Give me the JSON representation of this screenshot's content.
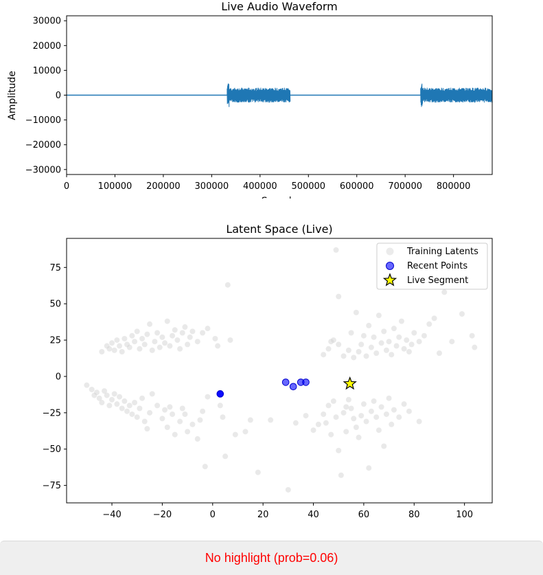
{
  "chart_data": [
    {
      "type": "line",
      "title": "Live Audio Waveform",
      "xlabel": "Sample",
      "ylabel": "Amplitude",
      "xlim": [
        0,
        880000
      ],
      "ylim": [
        -32000,
        32000
      ],
      "xticks": [
        0,
        100000,
        200000,
        300000,
        400000,
        500000,
        600000,
        700000,
        800000
      ],
      "xtick_labels": [
        "0",
        "100000",
        "200000",
        "300000",
        "400000",
        "500000",
        "600000",
        "700000",
        "800000"
      ],
      "yticks": [
        30000,
        20000,
        10000,
        0,
        -10000,
        -20000,
        -30000
      ],
      "ytick_labels": [
        "30000",
        "20000",
        "10000",
        "0",
        "−10000",
        "−20000",
        "−30000"
      ],
      "color": "#1f77b4",
      "segments": [
        {
          "start": 0,
          "end": 332000,
          "amplitude": 0
        },
        {
          "start": 332000,
          "end": 462000,
          "amplitude": 3000
        },
        {
          "start": 462000,
          "end": 732000,
          "amplitude": 0
        },
        {
          "start": 732000,
          "end": 880000,
          "amplitude": 3000
        }
      ]
    },
    {
      "type": "scatter",
      "title": "Latent Space (Live)",
      "xlim": [
        -58,
        111
      ],
      "ylim": [
        -87,
        95
      ],
      "xticks": [
        -40,
        -20,
        0,
        20,
        40,
        60,
        80,
        100
      ],
      "xtick_labels": [
        "−40",
        "−20",
        "0",
        "20",
        "40",
        "60",
        "80",
        "100"
      ],
      "yticks": [
        75,
        50,
        25,
        0,
        -25,
        -50,
        -75
      ],
      "ytick_labels": [
        "75",
        "50",
        "25",
        "0",
        "−25",
        "−50",
        "−75"
      ],
      "legend_position": "top-right",
      "series": [
        {
          "name": "Training Latents",
          "marker": "circle",
          "color": "#d3d3d3",
          "points": [
            [
              -50,
              -6
            ],
            [
              -48,
              -9
            ],
            [
              -47,
              -13
            ],
            [
              -46,
              -11
            ],
            [
              -45,
              -15
            ],
            [
              -44,
              -18
            ],
            [
              -43,
              -10
            ],
            [
              -42,
              -13
            ],
            [
              -41,
              -20
            ],
            [
              -40,
              -16
            ],
            [
              -39,
              -12
            ],
            [
              -38,
              -19
            ],
            [
              -37,
              -14
            ],
            [
              -36,
              -22
            ],
            [
              -35,
              -17
            ],
            [
              -34,
              -24
            ],
            [
              -33,
              -20
            ],
            [
              -32,
              -26
            ],
            [
              -31,
              -18
            ],
            [
              -30,
              -28
            ],
            [
              -29,
              -22
            ],
            [
              -28,
              -15
            ],
            [
              -27,
              -31
            ],
            [
              -26,
              -36
            ],
            [
              -25,
              -25
            ],
            [
              -24,
              -12
            ],
            [
              -22,
              -20
            ],
            [
              -20,
              -29
            ],
            [
              -19,
              -23
            ],
            [
              -18,
              -35
            ],
            [
              -17,
              -21
            ],
            [
              -16,
              -26
            ],
            [
              -15,
              -40
            ],
            [
              -13,
              -31
            ],
            [
              -12,
              -22
            ],
            [
              -11,
              -26
            ],
            [
              -10,
              -38
            ],
            [
              -8,
              -33
            ],
            [
              -6,
              -43
            ],
            [
              -5,
              -30
            ],
            [
              -4,
              -24
            ],
            [
              -3,
              -62
            ],
            [
              -2,
              -14
            ],
            [
              -44,
              17
            ],
            [
              -42,
              21
            ],
            [
              -41,
              19
            ],
            [
              -40,
              23
            ],
            [
              -39,
              18
            ],
            [
              -38,
              25
            ],
            [
              -37,
              21
            ],
            [
              -36,
              17
            ],
            [
              -35,
              26
            ],
            [
              -34,
              22
            ],
            [
              -33,
              20
            ],
            [
              -32,
              28
            ],
            [
              -31,
              24
            ],
            [
              -30,
              31
            ],
            [
              -29,
              19
            ],
            [
              -28,
              26
            ],
            [
              -27,
              22
            ],
            [
              -26,
              29
            ],
            [
              -25,
              36
            ],
            [
              -24,
              18
            ],
            [
              -23,
              24
            ],
            [
              -22,
              30
            ],
            [
              -21,
              20
            ],
            [
              -20,
              27
            ],
            [
              -19,
              23
            ],
            [
              -18,
              38
            ],
            [
              -17,
              21
            ],
            [
              -16,
              28
            ],
            [
              -15,
              32
            ],
            [
              -14,
              25
            ],
            [
              -13,
              19
            ],
            [
              -12,
              30
            ],
            [
              -11,
              34
            ],
            [
              -10,
              22
            ],
            [
              -9,
              27
            ],
            [
              -8,
              31
            ],
            [
              -6,
              24
            ],
            [
              -4,
              30
            ],
            [
              -2,
              33
            ],
            [
              1,
              26
            ],
            [
              2,
              21
            ],
            [
              7,
              25
            ],
            [
              6,
              63
            ],
            [
              3,
              -20
            ],
            [
              4,
              -28
            ],
            [
              5,
              -55
            ],
            [
              9,
              -40
            ],
            [
              13,
              -38
            ],
            [
              15,
              -30
            ],
            [
              18,
              -66
            ],
            [
              23,
              -30
            ],
            [
              30,
              -78
            ],
            [
              33,
              -32
            ],
            [
              37,
              -27
            ],
            [
              40,
              -37
            ],
            [
              44,
              -26
            ],
            [
              46,
              -20
            ],
            [
              48,
              -17
            ],
            [
              50,
              -51
            ],
            [
              52,
              -25
            ],
            [
              53,
              -21
            ],
            [
              54,
              -16
            ],
            [
              55,
              -22
            ],
            [
              56,
              -29
            ],
            [
              57,
              -35
            ],
            [
              58,
              -42
            ],
            [
              59,
              -27
            ],
            [
              60,
              -19
            ],
            [
              61,
              -31
            ],
            [
              62,
              -63
            ],
            [
              63,
              -24
            ],
            [
              64,
              -17
            ],
            [
              65,
              -28
            ],
            [
              66,
              -37
            ],
            [
              67,
              -21
            ],
            [
              68,
              -48
            ],
            [
              69,
              -26
            ],
            [
              70,
              -15
            ],
            [
              71,
              -33
            ],
            [
              72,
              -23
            ],
            [
              74,
              -28
            ],
            [
              76,
              -19
            ],
            [
              78,
              -24
            ],
            [
              82,
              -31
            ],
            [
              45,
              -32
            ],
            [
              47,
              -40
            ],
            [
              49,
              -28
            ],
            [
              42,
              -33
            ],
            [
              53,
              -38
            ],
            [
              51,
              -68
            ],
            [
              44,
              15
            ],
            [
              46,
              19
            ],
            [
              48,
              25
            ],
            [
              50,
              22
            ],
            [
              52,
              14
            ],
            [
              54,
              18
            ],
            [
              55,
              30
            ],
            [
              56,
              13
            ],
            [
              57,
              44
            ],
            [
              58,
              17
            ],
            [
              59,
              22
            ],
            [
              60,
              28
            ],
            [
              61,
              14
            ],
            [
              62,
              35
            ],
            [
              63,
              20
            ],
            [
              64,
              27
            ],
            [
              65,
              16
            ],
            [
              66,
              42
            ],
            [
              67,
              23
            ],
            [
              68,
              31
            ],
            [
              69,
              18
            ],
            [
              70,
              24
            ],
            [
              71,
              15
            ],
            [
              72,
              33
            ],
            [
              73,
              21
            ],
            [
              74,
              27
            ],
            [
              75,
              38
            ],
            [
              76,
              19
            ],
            [
              77,
              25
            ],
            [
              78,
              17
            ],
            [
              79,
              22
            ],
            [
              80,
              30
            ],
            [
              82,
              24
            ],
            [
              84,
              28
            ],
            [
              86,
              36
            ],
            [
              88,
              40
            ],
            [
              90,
              16
            ],
            [
              92,
              58
            ],
            [
              95,
              24
            ],
            [
              99,
              43
            ],
            [
              103,
              28
            ],
            [
              104,
              20
            ],
            [
              49,
              87
            ],
            [
              50,
              55
            ],
            [
              47,
              24
            ]
          ]
        },
        {
          "name": "Recent Points",
          "marker": "circle",
          "color": "#0000ff",
          "points": [
            [
              3,
              -12
            ],
            [
              29,
              -4
            ],
            [
              32,
              -7
            ],
            [
              35,
              -4
            ],
            [
              37,
              -4
            ]
          ]
        },
        {
          "name": "Live Segment",
          "marker": "star",
          "color": "#ffff00",
          "points": [
            [
              54.5,
              -5
            ]
          ]
        }
      ]
    }
  ],
  "status": {
    "message": "No highlight (prob=0.06)",
    "color": "#ff0000"
  }
}
